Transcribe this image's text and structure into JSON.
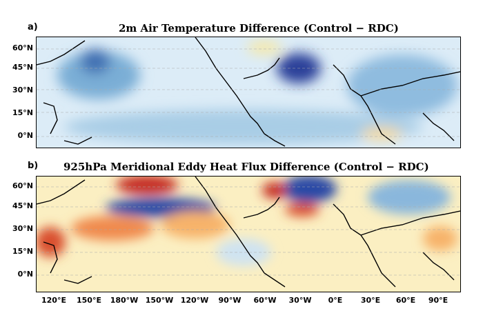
{
  "panels": [
    {
      "letter": "a)",
      "title": "2m Air Temperature Difference (Control − RDC)",
      "colors": {
        "background": "#dcecf7",
        "blobs": [
          {
            "color": "#7aaed6"
          },
          {
            "color": "#3f6fb2"
          },
          {
            "color": "#2a3f99"
          },
          {
            "color": "#8fbcdf"
          },
          {
            "color": "#a9cde6"
          },
          {
            "color": "#f6e9a9"
          },
          {
            "color": "#f3d9a0"
          }
        ]
      }
    },
    {
      "letter": "b)",
      "title": "925hPa Meridional Eddy Heat Flux Difference (Control − RDC)",
      "colors": {
        "background": "#fbefc2",
        "blobs": [
          {
            "color": "#c42b22"
          },
          {
            "color": "#2b4aa6"
          },
          {
            "color": "#f08a4d"
          },
          {
            "color": "#f7b36a"
          },
          {
            "color": "#8ab7dc"
          },
          {
            "color": "#cfe3f1"
          },
          {
            "color": "#d94f2e"
          }
        ]
      }
    }
  ],
  "axes": {
    "lat_labels": [
      "60°N",
      "45°N",
      "30°N",
      "15°N",
      "0°N"
    ],
    "lon_labels": [
      "120°E",
      "150°E",
      "180°W",
      "150°W",
      "120°W",
      "90°W",
      "60°W",
      "30°W",
      "0°E",
      "30°E",
      "60°E",
      "90°E"
    ]
  }
}
